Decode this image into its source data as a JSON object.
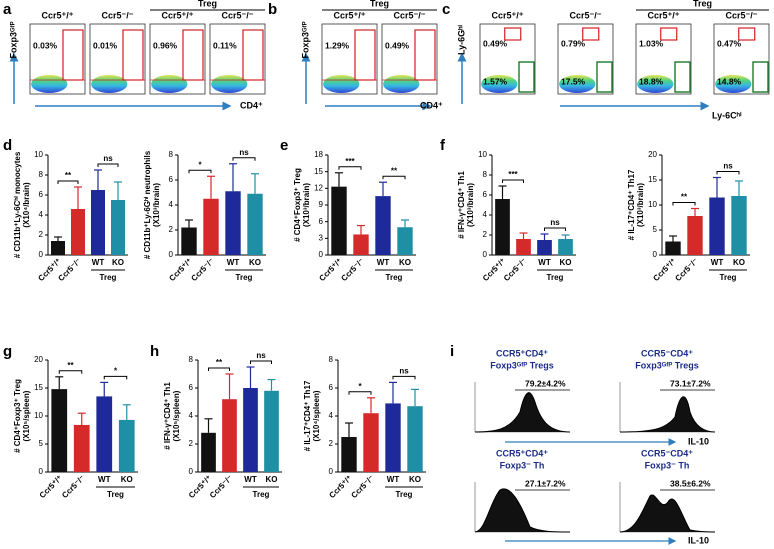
{
  "panel_labels": [
    "a",
    "b",
    "c",
    "d",
    "e",
    "f",
    "g",
    "h",
    "i"
  ],
  "flow": [
    {
      "group_label": "Treg",
      "headers": [
        "Ccr5⁺/⁺",
        "Ccr5⁻/⁻",
        "Ccr5⁺/⁺",
        "Ccr5⁻/⁻"
      ],
      "group_span": [
        2,
        3
      ],
      "y_label": "Foxp3ᴳᶠᴾ",
      "x_label": "CD4⁺",
      "gates": [
        "0.03%",
        "0.01%",
        "0.96%",
        "0.11%"
      ]
    },
    {
      "group_label": "Treg",
      "headers": [
        "Ccr5⁺/⁺",
        "Ccr5⁻/⁻"
      ],
      "group_span": [
        0,
        1
      ],
      "y_label": "Foxp3ᴳᶠᴾ",
      "x_label": "CD4⁺",
      "gates": [
        "1.29%",
        "0.49%"
      ]
    },
    {
      "group_label": "Treg",
      "headers": [
        "Ccr5⁺/⁺",
        "Ccr5⁻/⁻",
        "Ccr5⁺/⁺",
        "Ccr5⁻/⁻"
      ],
      "group_span": [
        2,
        3
      ],
      "y_label": "Ly-6Gʰⁱ",
      "x_label": "Ly-6Cʰⁱ",
      "gates": [
        "0.49%",
        "0.79%",
        "1.03%",
        "0.47%"
      ],
      "gates_low": [
        "1.57%",
        "17.5%",
        "18.8%",
        "14.8%"
      ]
    }
  ],
  "histograms": {
    "x_label": "IL-10",
    "plots": [
      {
        "title": [
          "CCR5⁺CD4⁺",
          "Foxp3ᴳᶠᴾ Tregs"
        ],
        "gate": "79.2±4.2%"
      },
      {
        "title": [
          "CCR5⁻CD4⁺",
          "Foxp3ᴳᶠᴾ Tregs"
        ],
        "gate": "73.1±7.2%"
      },
      {
        "title": [
          "CCR5⁺CD4⁺",
          "Foxp3⁻ Th"
        ],
        "gate": "27.1±7.2%"
      },
      {
        "title": [
          "CCR5⁻CD4⁺",
          "Foxp3⁻ Th"
        ],
        "gate": "38.5±6.2%"
      }
    ]
  },
  "chart_data": [
    {
      "type": "bar",
      "y_label": [
        "# CD11b⁺Ly-6Cʰⁱ monocytes",
        "(X10⁴/brain)"
      ],
      "categories": [
        "Ccr5⁺/⁺",
        "Ccr5⁻/⁻",
        "WT",
        "KO"
      ],
      "group_label": "Treg",
      "colors": [
        "#111111",
        "#d42a2a",
        "#1e2a9a",
        "#1f8fa6"
      ],
      "values": [
        1.4,
        4.6,
        6.5,
        5.5
      ],
      "errors": [
        0.4,
        2.2,
        2.0,
        1.8
      ],
      "significance": [
        "**",
        "ns"
      ],
      "ylim": [
        0,
        10
      ],
      "yticks": [
        0,
        2,
        4,
        6,
        8,
        10
      ]
    },
    {
      "type": "bar",
      "y_label": [
        "# CD11b⁺Ly-6Gʰⁱ neutrophils",
        "(X10³/brain)"
      ],
      "categories": [
        "Ccr5⁺/⁺",
        "Ccr5⁻/⁻",
        "WT",
        "KO"
      ],
      "group_label": "Treg",
      "colors": [
        "#111111",
        "#d42a2a",
        "#1e2a9a",
        "#1f8fa6"
      ],
      "values": [
        2.2,
        4.5,
        5.1,
        4.9
      ],
      "errors": [
        0.6,
        1.8,
        2.2,
        1.6
      ],
      "significance": [
        "*",
        "ns"
      ],
      "ylim": [
        0,
        8
      ],
      "yticks": [
        0,
        2,
        4,
        6,
        8
      ]
    },
    {
      "type": "bar",
      "y_label": [
        "# CD4⁺Foxp3⁺ Treg",
        "(X10³/brain)"
      ],
      "categories": [
        "Ccr5⁺/⁺",
        "Ccr5⁻/⁻",
        "WT",
        "KO"
      ],
      "group_label": "Treg",
      "colors": [
        "#111111",
        "#d42a2a",
        "#1e2a9a",
        "#1f8fa6"
      ],
      "values": [
        12.3,
        3.7,
        10.6,
        5.0
      ],
      "errors": [
        2.5,
        1.6,
        2.5,
        1.3
      ],
      "significance": [
        "***",
        "**"
      ],
      "ylim": [
        0,
        18
      ],
      "yticks": [
        0,
        3,
        6,
        9,
        12,
        15,
        18
      ]
    },
    {
      "type": "bar",
      "y_label": [
        "# IFN-γ⁺CD4⁺ Th1",
        "(X10³/brain)"
      ],
      "categories": [
        "Ccr5⁺/⁺",
        "Ccr5⁻/⁻",
        "WT",
        "KO"
      ],
      "group_label": "Treg",
      "colors": [
        "#111111",
        "#d42a2a",
        "#1e2a9a",
        "#1f8fa6"
      ],
      "values": [
        5.6,
        1.6,
        1.5,
        1.6
      ],
      "errors": [
        1.3,
        0.6,
        0.6,
        0.4
      ],
      "significance": [
        "***",
        "ns"
      ],
      "ylim": [
        0,
        10
      ],
      "yticks": [
        0,
        2,
        4,
        6,
        8,
        10
      ]
    },
    {
      "type": "bar",
      "y_label": [
        "# IL-17⁺CD4⁺ Th17",
        "(X10³/brain)"
      ],
      "categories": [
        "Ccr5⁺/⁺",
        "Ccr5⁻/⁻",
        "WT",
        "KO"
      ],
      "group_label": "Treg",
      "colors": [
        "#111111",
        "#d42a2a",
        "#1e2a9a",
        "#1f8fa6"
      ],
      "values": [
        2.7,
        7.8,
        11.5,
        11.8
      ],
      "errors": [
        1.1,
        1.5,
        4.0,
        3.0
      ],
      "significance": [
        "**",
        "ns"
      ],
      "ylim": [
        0,
        20
      ],
      "yticks": [
        0,
        5,
        10,
        15,
        20
      ]
    },
    {
      "type": "bar",
      "y_label": [
        "# CD4⁺Foxp3⁺ Treg",
        "(X10⁵/spleen)"
      ],
      "categories": [
        "Ccr5⁺/⁺",
        "Ccr5⁻/⁻",
        "WT",
        "KO"
      ],
      "group_label": "Treg",
      "colors": [
        "#111111",
        "#d42a2a",
        "#1e2a9a",
        "#1f8fa6"
      ],
      "values": [
        14.8,
        8.4,
        13.5,
        9.3
      ],
      "errors": [
        2.2,
        2.1,
        2.5,
        2.7
      ],
      "significance": [
        "**",
        "*"
      ],
      "ylim": [
        0,
        20
      ],
      "yticks": [
        0,
        5,
        10,
        15,
        20
      ]
    },
    {
      "type": "bar",
      "y_label": [
        "# IFN-γ⁺CD4⁺ Th1",
        "(X10⁵/spleen)"
      ],
      "categories": [
        "Ccr5⁺/⁺",
        "Ccr5⁻/⁻",
        "WT",
        "KO"
      ],
      "group_label": "Treg",
      "colors": [
        "#111111",
        "#d42a2a",
        "#1e2a9a",
        "#1f8fa6"
      ],
      "values": [
        2.8,
        5.2,
        6.0,
        5.8
      ],
      "errors": [
        1.0,
        1.8,
        1.5,
        0.8
      ],
      "significance": [
        "**",
        "ns"
      ],
      "ylim": [
        0,
        8
      ],
      "yticks": [
        0,
        2,
        4,
        6,
        8
      ]
    },
    {
      "type": "bar",
      "y_label": [
        "# IL-17⁺CD4⁺ Th17",
        "(X10⁴/spleen)"
      ],
      "categories": [
        "Ccr5⁺/⁺",
        "Ccr5⁻/⁻",
        "WT",
        "KO"
      ],
      "group_label": "Treg",
      "colors": [
        "#111111",
        "#d42a2a",
        "#1e2a9a",
        "#1f8fa6"
      ],
      "values": [
        2.5,
        4.2,
        4.9,
        4.7
      ],
      "errors": [
        1.0,
        1.1,
        1.5,
        1.2
      ],
      "significance": [
        "*",
        "ns"
      ],
      "ylim": [
        0,
        8
      ],
      "yticks": [
        0,
        2,
        4,
        6,
        8
      ]
    }
  ]
}
